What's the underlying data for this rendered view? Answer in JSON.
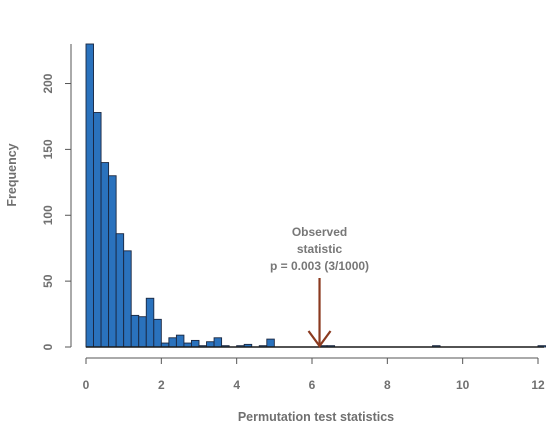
{
  "chart_data": {
    "type": "bar",
    "title": "",
    "xlabel": "Permutation test statistics",
    "ylabel": "Frequency",
    "xlim": [
      0,
      12
    ],
    "ylim": [
      0,
      230
    ],
    "grid": false,
    "legend": "none",
    "x_ticks": [
      0,
      2,
      4,
      6,
      8,
      10,
      12
    ],
    "y_ticks": [
      0,
      50,
      100,
      150,
      200
    ],
    "bin_width": 0.2,
    "bin_starts": [
      0.0,
      0.2,
      0.4,
      0.6,
      0.8,
      1.0,
      1.2,
      1.4,
      1.6,
      1.8,
      2.0,
      2.2,
      2.4,
      2.6,
      2.8,
      3.0,
      3.2,
      3.4,
      3.6,
      3.8,
      4.0,
      4.2,
      4.4,
      4.6,
      4.8,
      5.0,
      5.2,
      5.4,
      5.6,
      5.8,
      6.0,
      6.2,
      6.4,
      6.6,
      6.8,
      7.0,
      7.2,
      7.4,
      7.6,
      7.8,
      8.0,
      8.2,
      8.4,
      8.6,
      8.8,
      9.0,
      9.2,
      9.4,
      9.6,
      9.8,
      10.0,
      10.2,
      10.4,
      10.6,
      10.8,
      11.0,
      11.2,
      11.4,
      11.6,
      11.8,
      12.0
    ],
    "values": [
      230,
      178,
      140,
      130,
      86,
      73,
      24,
      23,
      37,
      21,
      3,
      7,
      9,
      3,
      5,
      1,
      4,
      7,
      1,
      0,
      1,
      2,
      0,
      1,
      6,
      0,
      0,
      0,
      0,
      0,
      0,
      1,
      1,
      0,
      0,
      0,
      0,
      0,
      0,
      0,
      0,
      0,
      0,
      0,
      0,
      0,
      1,
      0,
      0,
      0,
      0,
      0,
      0,
      0,
      0,
      0,
      0,
      0,
      0,
      0,
      1
    ],
    "annotation": {
      "lines": [
        "Observed",
        "statistic",
        "p = 0.003 (3/1000)"
      ],
      "x": 6.2,
      "arrow_color": "#8b3a1f"
    }
  },
  "colors": {
    "bar_fill": "#2a72bd",
    "bar_stroke": "#1a2740",
    "text": "#707070"
  }
}
